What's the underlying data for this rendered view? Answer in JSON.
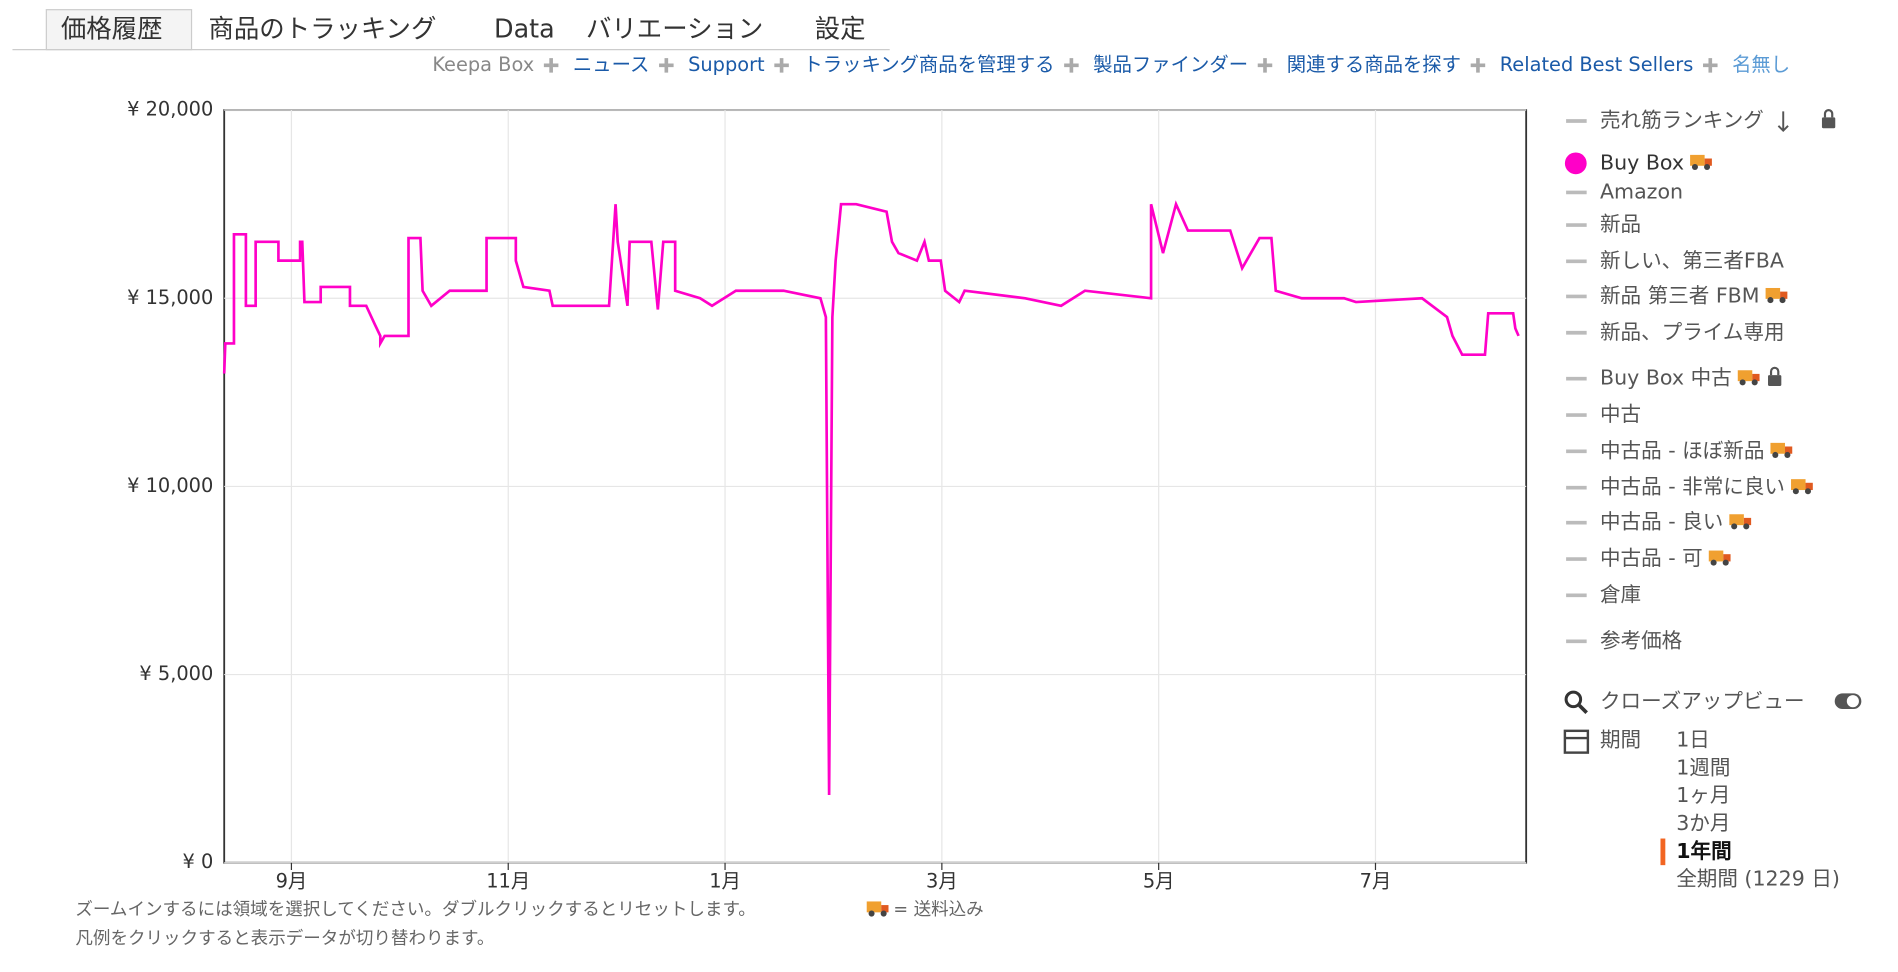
{
  "tabs": [
    "価格履歴",
    "商品のトラッキング",
    "Data",
    "バリエーション",
    "設定"
  ],
  "links": [
    "Keepa Box",
    "ニュース",
    "Support",
    "トラッキング商品を管理する",
    "製品ファインダー",
    "関連する商品を探す",
    "Related Best Sellers",
    "名無し"
  ],
  "chart_data": {
    "type": "line",
    "x": [
      8.38,
      8.39,
      8.47,
      8.47,
      8.58,
      8.58,
      8.67,
      8.67,
      8.88,
      8.88,
      9.08,
      9.08,
      9.1,
      9.12,
      9.27,
      9.27,
      9.54,
      9.54,
      9.69,
      9.77,
      9.82,
      9.82,
      9.86,
      10.08,
      10.08,
      10.19,
      10.21,
      10.29,
      10.46,
      10.8,
      10.8,
      11.07,
      11.07,
      11.14,
      11.38,
      11.41,
      11.93,
      11.99,
      12.01,
      12.1,
      12.12,
      12.32,
      12.38,
      12.43,
      12.54,
      12.54,
      12.77,
      12.88,
      12.99,
      13.1,
      13.54,
      13.88,
      13.93,
      13.96,
      13.99,
      14.02,
      14.07,
      14.21,
      14.49,
      14.54,
      14.6,
      14.77,
      14.84,
      14.88,
      14.99,
      15.03,
      15.16,
      15.21,
      15.77,
      16.1,
      16.32,
      16.93,
      16.93,
      17.04,
      17.16,
      17.27,
      17.66,
      17.77,
      17.93,
      18.04,
      18.08,
      18.32,
      18.71,
      18.82,
      19.43,
      19.66,
      19.71,
      19.8,
      20.01,
      20.04,
      20.27,
      20.29,
      20.32
    ],
    "series": [
      {
        "name": "Buy Box",
        "color": "#ff00c8",
        "values": [
          13000,
          13800,
          13800,
          16700,
          16700,
          14800,
          14800,
          16500,
          16500,
          16000,
          16000,
          16500,
          16500,
          14900,
          14900,
          15300,
          15300,
          14800,
          14800,
          14300,
          14000,
          13800,
          14000,
          14000,
          16600,
          16600,
          15200,
          14800,
          15200,
          15200,
          16600,
          16600,
          16000,
          15300,
          15200,
          14800,
          14800,
          17500,
          16500,
          14800,
          16500,
          16500,
          14700,
          16500,
          16500,
          15200,
          15000,
          14800,
          15000,
          15200,
          15200,
          15000,
          14500,
          1800,
          14500,
          16000,
          17500,
          17500,
          17300,
          16500,
          16200,
          16000,
          16500,
          16000,
          16000,
          15200,
          14900,
          15200,
          15000,
          14800,
          15200,
          15000,
          17500,
          16200,
          17500,
          16800,
          16800,
          15800,
          16600,
          16600,
          15200,
          15000,
          15000,
          14900,
          15000,
          14500,
          14000,
          13500,
          13500,
          14600,
          14600,
          14200,
          14000
        ]
      }
    ],
    "xlim": [
      8.38,
      20.39
    ],
    "xticks": [
      {
        "value": 9,
        "label": "9月"
      },
      {
        "value": 11,
        "label": "11月"
      },
      {
        "value": 13,
        "label": "1月"
      },
      {
        "value": 15,
        "label": "3月"
      },
      {
        "value": 17,
        "label": "5月"
      },
      {
        "value": 19,
        "label": "7月"
      }
    ],
    "ylim": [
      0,
      20000
    ],
    "yticks": [
      {
        "value": 0,
        "label": "¥ 0"
      },
      {
        "value": 5000,
        "label": "¥ 5,000"
      },
      {
        "value": 10000,
        "label": "¥ 10,000"
      },
      {
        "value": 15000,
        "label": "¥ 15,000"
      },
      {
        "value": 20000,
        "label": "¥ 20,000"
      }
    ],
    "grid": true
  },
  "legend_items": [
    "売れ筋ランキング",
    "Amazon",
    "新品",
    "新しい、第三者FBA",
    "新品 第三者 FBM",
    "新品、プライム専用",
    "Buy Box 中古",
    "中古",
    "中古品 - ほぼ新品",
    "中古品 - 非常に良い",
    "中古品 - 良い",
    "中古品 - 可",
    "倉庫",
    "参考価格"
  ],
  "closeup": "クローズアップビュー",
  "range": {
    "label": "期間",
    "options": [
      "1日",
      "1週間",
      "1ヶ月",
      "3か月",
      "1年間",
      "全期間 (1229 日)"
    ],
    "selected": 4
  },
  "notes": [
    "ズームインするには領域を選択してください。ダブルクリックするとリセットします。",
    "= 送料込み",
    "凡例をクリックすると表示データが切り替わります。"
  ]
}
